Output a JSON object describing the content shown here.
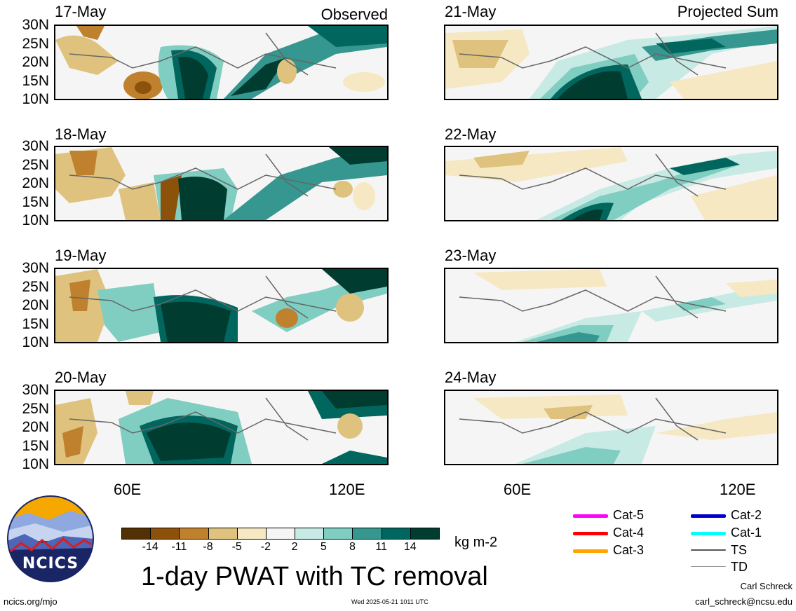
{
  "panels_left": [
    {
      "date": "17-May",
      "corner": "Observed"
    },
    {
      "date": "18-May",
      "corner": ""
    },
    {
      "date": "19-May",
      "corner": ""
    },
    {
      "date": "20-May",
      "corner": ""
    }
  ],
  "panels_right": [
    {
      "date": "21-May",
      "corner": "Projected Sum"
    },
    {
      "date": "22-May",
      "corner": ""
    },
    {
      "date": "23-May",
      "corner": ""
    },
    {
      "date": "24-May",
      "corner": ""
    }
  ],
  "lat_labels": [
    "30N",
    "25N",
    "20N",
    "15N",
    "10N"
  ],
  "lon_labels": [
    "60E",
    "120E"
  ],
  "colorbar": {
    "colors": [
      "#543005",
      "#8c510a",
      "#bf812d",
      "#dfc27d",
      "#f6e8c3",
      "#f5f5f5",
      "#c7eae5",
      "#80cdc1",
      "#35978f",
      "#01665e",
      "#003c30"
    ],
    "labels": [
      "-14",
      "-11",
      "-8",
      "-5",
      "-2",
      "2",
      "5",
      "8",
      "11",
      "14"
    ],
    "units": "kg m-2"
  },
  "title": "1-day PWAT with TC removal",
  "legend": [
    {
      "label": "Cat-5",
      "color": "#ff00ff"
    },
    {
      "label": "Cat-4",
      "color": "#ff0000"
    },
    {
      "label": "Cat-3",
      "color": "#ffa500"
    },
    {
      "label": "Cat-2",
      "color": "#0000cc"
    },
    {
      "label": "Cat-1",
      "color": "#00ffff"
    },
    {
      "label": "TS",
      "color": "#555555"
    },
    {
      "label": "TD",
      "color": "#999999"
    }
  ],
  "logo_text": "NCICS",
  "footer": {
    "url": "ncics.org/mjo",
    "timestamp": "Wed 2025-05-21 1011 UTC",
    "author": "Carl Schreck",
    "email": "carl_schreck@ncsu.edu"
  }
}
